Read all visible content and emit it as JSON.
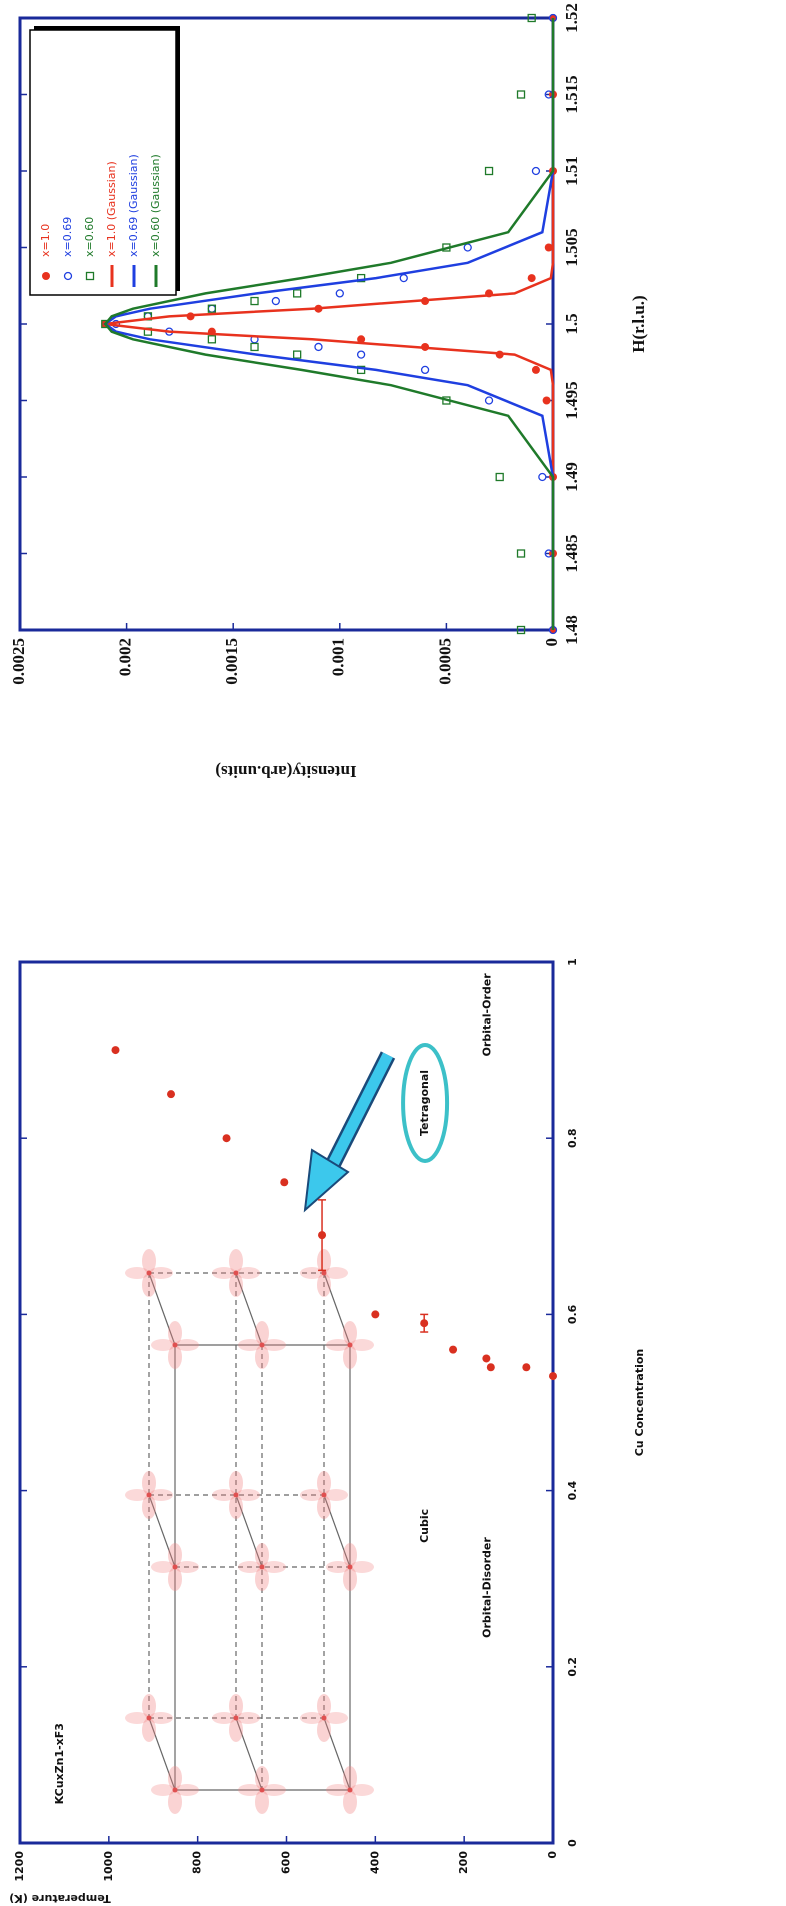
{
  "chart_data": [
    {
      "type": "scatter",
      "xlabel": "H(r.l.u.)",
      "ylabel": "Intensity(arb.units)",
      "xlim": [
        1.48,
        1.52
      ],
      "xticks": [
        1.48,
        1.485,
        1.49,
        1.495,
        1.5,
        1.505,
        1.51,
        1.515,
        1.52
      ],
      "ylim": [
        0,
        0.0025
      ],
      "yticks": [
        0,
        0.0005,
        0.001,
        0.0015,
        0.002,
        0.0025
      ],
      "legend": "upper right",
      "series": [
        {
          "name": "x=1.0",
          "color": "#e8321e",
          "marker": "circle-filled",
          "x": [
            1.48,
            1.485,
            1.49,
            1.495,
            1.497,
            1.498,
            1.4985,
            1.499,
            1.4995,
            1.5,
            1.5005,
            1.501,
            1.5015,
            1.502,
            1.503,
            1.505,
            1.51,
            1.515,
            1.52
          ],
          "values": [
            0,
            0,
            0,
            3e-05,
            8e-05,
            0.00025,
            0.0006,
            0.0009,
            0.0016,
            0.0021,
            0.0017,
            0.0011,
            0.0006,
            0.0003,
            0.0001,
            2e-05,
            0,
            0,
            0
          ]
        },
        {
          "name": "x=0.69",
          "color": "#1f3fe0",
          "marker": "circle-open",
          "x": [
            1.48,
            1.485,
            1.49,
            1.495,
            1.497,
            1.498,
            1.4985,
            1.499,
            1.4995,
            1.5,
            1.5005,
            1.501,
            1.5015,
            1.502,
            1.503,
            1.505,
            1.51,
            1.515,
            1.52
          ],
          "values": [
            0,
            2e-05,
            5e-05,
            0.0003,
            0.0006,
            0.0009,
            0.0011,
            0.0014,
            0.0018,
            0.00205,
            0.0019,
            0.0016,
            0.0013,
            0.001,
            0.0007,
            0.0004,
            8e-05,
            2e-05,
            0
          ]
        },
        {
          "name": "x=0.60",
          "color": "#1f7a2a",
          "marker": "square-open",
          "x": [
            1.48,
            1.485,
            1.49,
            1.495,
            1.497,
            1.498,
            1.4985,
            1.499,
            1.4995,
            1.5,
            1.5005,
            1.501,
            1.5015,
            1.502,
            1.503,
            1.505,
            1.51,
            1.515,
            1.52
          ],
          "values": [
            0.00015,
            0.00015,
            0.00025,
            0.0005,
            0.0009,
            0.0012,
            0.0014,
            0.0016,
            0.0019,
            0.0021,
            0.0019,
            0.0016,
            0.0014,
            0.0012,
            0.0009,
            0.0005,
            0.0003,
            0.00015,
            0.0001
          ]
        },
        {
          "name": "x=1.0 (Gaussian)",
          "color": "#e8321e",
          "type": "line",
          "x": [
            1.48,
            1.49,
            1.494,
            1.496,
            1.497,
            1.498,
            1.499,
            1.4995,
            1.5,
            1.5005,
            1.501,
            1.502,
            1.503,
            1.504,
            1.506,
            1.51,
            1.52
          ],
          "values": [
            0,
            0,
            0,
            0,
            1e-05,
            0.00018,
            0.00113,
            0.0018,
            0.0021,
            0.0018,
            0.00113,
            0.00018,
            1e-05,
            0,
            0,
            0,
            0
          ]
        },
        {
          "name": "x=0.69 (Gaussian)",
          "color": "#1f3fe0",
          "type": "line",
          "x": [
            1.48,
            1.49,
            1.494,
            1.496,
            1.497,
            1.498,
            1.499,
            1.4995,
            1.5,
            1.5005,
            1.501,
            1.502,
            1.503,
            1.504,
            1.506,
            1.51,
            1.52
          ],
          "values": [
            0,
            0,
            5e-05,
            0.0004,
            0.00083,
            0.00139,
            0.00189,
            0.00205,
            0.0021,
            0.00205,
            0.00189,
            0.00139,
            0.00083,
            0.0004,
            5e-05,
            0,
            0
          ]
        },
        {
          "name": "x=0.60 (Gaussian)",
          "color": "#1f7a2a",
          "type": "line",
          "x": [
            1.48,
            1.49,
            1.494,
            1.496,
            1.497,
            1.498,
            1.499,
            1.4995,
            1.5,
            1.5005,
            1.501,
            1.502,
            1.503,
            1.504,
            1.506,
            1.51,
            1.52
          ],
          "values": [
            0,
            0,
            0.00021,
            0.00076,
            0.00118,
            0.00163,
            0.00197,
            0.00207,
            0.0021,
            0.00207,
            0.00197,
            0.00163,
            0.00118,
            0.00076,
            0.00021,
            0,
            0
          ]
        }
      ]
    },
    {
      "type": "scatter",
      "xlabel": "Cu Concentration",
      "ylabel": "Temperature (K)",
      "xlim": [
        0,
        1
      ],
      "xticks": [
        0,
        0.2,
        0.4,
        0.6,
        0.8,
        1
      ],
      "ylim": [
        0,
        1200
      ],
      "yticks": [
        0,
        200,
        400,
        600,
        800,
        1000,
        1200
      ],
      "series": [
        {
          "color": "#d93020",
          "marker": "circle-filled",
          "x": [
            0.53,
            0.54,
            0.54,
            0.55,
            0.56,
            0.59,
            0.6,
            0.69,
            0.75,
            0.8,
            0.85,
            0.9
          ],
          "values": [
            0,
            60,
            140,
            150,
            225,
            290,
            400,
            520,
            605,
            735,
            860,
            985
          ],
          "x_errors": [
            0,
            0,
            0,
            0,
            0,
            0.01,
            0,
            0.04,
            0,
            0,
            0,
            0
          ]
        }
      ],
      "annotations": [
        "KCuxZn1-xF3",
        "Cubic",
        "Orbital-Disorder",
        "Tetragonal",
        "Orbital-Order"
      ]
    }
  ]
}
